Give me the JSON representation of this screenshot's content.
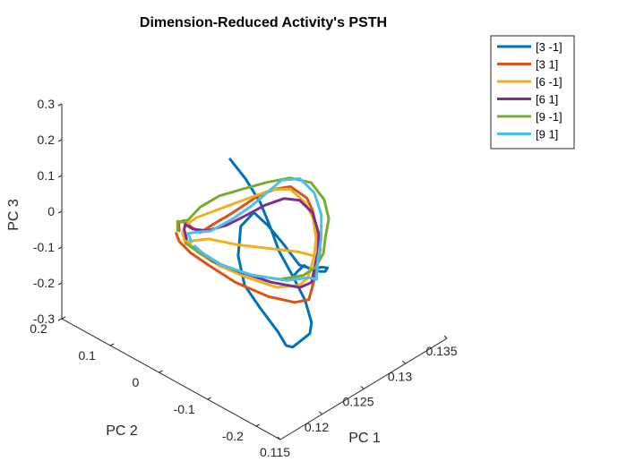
{
  "chart_data": {
    "type": "line",
    "projection": "3d",
    "title": "Dimension-Reduced Activity's PSTH",
    "xlabel": "PC 1",
    "ylabel": "PC 2",
    "zlabel": "PC 3",
    "xlim": [
      0.115,
      0.135
    ],
    "ylim": [
      -0.25,
      0.2
    ],
    "zlim": [
      -0.3,
      0.3
    ],
    "xticks": [
      0.115,
      0.12,
      0.125,
      0.13,
      0.135
    ],
    "xtick_labels": [
      "0.115",
      "0.12",
      "0.125",
      "0.13",
      "0.135"
    ],
    "yticks": [
      -0.2,
      -0.1,
      0,
      0.1,
      0.2
    ],
    "ytick_labels": [
      "-0.2",
      "-0.1",
      "0",
      "0.1",
      "0.2"
    ],
    "zticks": [
      -0.3,
      -0.2,
      -0.1,
      0,
      0.1,
      0.2,
      0.3
    ],
    "ztick_labels": [
      "-0.3",
      "-0.2",
      "-0.1",
      "0",
      "0.1",
      "0.2",
      "0.3"
    ],
    "grid": false,
    "legend_position": "top-right",
    "series": [
      {
        "name": "[3 -1]",
        "color": "#0072BD",
        "points": [
          [
            0.1215,
            -0.035,
            0.23
          ],
          [
            0.1222,
            -0.055,
            0.18
          ],
          [
            0.1228,
            -0.075,
            0.12
          ],
          [
            0.1231,
            -0.09,
            0.06
          ],
          [
            0.1233,
            -0.105,
            0.0
          ],
          [
            0.1236,
            -0.13,
            -0.06
          ],
          [
            0.1238,
            -0.15,
            -0.11
          ],
          [
            0.1237,
            -0.165,
            -0.16
          ],
          [
            0.1232,
            -0.17,
            -0.18
          ],
          [
            0.1228,
            -0.16,
            -0.2
          ],
          [
            0.1223,
            -0.15,
            -0.22
          ],
          [
            0.1221,
            -0.14,
            -0.22
          ],
          [
            0.1223,
            -0.12,
            -0.2
          ],
          [
            0.1219,
            -0.09,
            -0.15
          ],
          [
            0.1215,
            -0.065,
            -0.1
          ],
          [
            0.1216,
            -0.05,
            -0.03
          ],
          [
            0.1222,
            -0.045,
            0.04
          ],
          [
            0.1229,
            -0.06,
            0.08
          ],
          [
            0.1231,
            -0.085,
            0.06
          ],
          [
            0.1232,
            -0.115,
            0.03
          ],
          [
            0.1234,
            -0.145,
            -0.01
          ],
          [
            0.1241,
            -0.16,
            -0.02
          ],
          [
            0.1252,
            -0.16,
            -0.03
          ],
          [
            0.1262,
            -0.155,
            -0.05
          ],
          [
            0.1268,
            -0.14,
            -0.08
          ],
          [
            0.1272,
            -0.12,
            -0.1
          ],
          [
            0.1273,
            -0.1,
            -0.11
          ],
          [
            0.1266,
            -0.1,
            -0.09
          ],
          [
            0.1252,
            -0.11,
            -0.08
          ],
          [
            0.1242,
            -0.12,
            -0.07
          ]
        ]
      },
      {
        "name": "[3 1]",
        "color": "#D95319",
        "points": [
          [
            0.1186,
            0.02,
            0.03
          ],
          [
            0.1189,
            0.026,
            0.045
          ],
          [
            0.1192,
            0.02,
            0.05
          ],
          [
            0.1193,
            0.008,
            0.04
          ],
          [
            0.1196,
            -0.006,
            0.03
          ],
          [
            0.1202,
            -0.012,
            0.04
          ],
          [
            0.1212,
            -0.018,
            0.05
          ],
          [
            0.1222,
            -0.025,
            0.06
          ],
          [
            0.1235,
            -0.03,
            0.07
          ],
          [
            0.1248,
            -0.035,
            0.08
          ],
          [
            0.1262,
            -0.048,
            0.09
          ],
          [
            0.1273,
            -0.06,
            0.09
          ],
          [
            0.1278,
            -0.085,
            0.07
          ],
          [
            0.1276,
            -0.1,
            0.05
          ],
          [
            0.1272,
            -0.115,
            0.02
          ],
          [
            0.1262,
            -0.14,
            -0.01
          ],
          [
            0.125,
            -0.155,
            -0.02
          ],
          [
            0.1238,
            -0.17,
            -0.03
          ],
          [
            0.1229,
            -0.18,
            -0.04
          ],
          [
            0.1222,
            -0.185,
            -0.06
          ],
          [
            0.1215,
            -0.168,
            -0.07
          ],
          [
            0.1206,
            -0.13,
            -0.07
          ],
          [
            0.1198,
            -0.075,
            -0.06
          ],
          [
            0.1193,
            -0.03,
            -0.04
          ],
          [
            0.1188,
            0.0,
            -0.02
          ],
          [
            0.1186,
            0.02,
            0.0
          ],
          [
            0.1187,
            0.028,
            0.015
          ]
        ]
      },
      {
        "name": "[6 -1]",
        "color": "#EDB120",
        "points": [
          [
            0.1185,
            0.005,
            0.005
          ],
          [
            0.1187,
            0.015,
            0.025
          ],
          [
            0.1194,
            0.02,
            0.035
          ],
          [
            0.1204,
            0.015,
            0.045
          ],
          [
            0.1218,
            0.005,
            0.05
          ],
          [
            0.1234,
            -0.01,
            0.06
          ],
          [
            0.125,
            -0.025,
            0.07
          ],
          [
            0.1264,
            -0.04,
            0.08
          ],
          [
            0.1274,
            -0.058,
            0.08
          ],
          [
            0.1276,
            -0.085,
            0.06
          ],
          [
            0.1272,
            -0.108,
            0.04
          ],
          [
            0.1264,
            -0.128,
            0.01
          ],
          [
            0.1252,
            -0.145,
            -0.01
          ],
          [
            0.124,
            -0.158,
            -0.02
          ],
          [
            0.1232,
            -0.165,
            -0.03
          ],
          [
            0.1224,
            -0.162,
            -0.04
          ],
          [
            0.1213,
            -0.135,
            -0.05
          ],
          [
            0.1202,
            -0.09,
            -0.04
          ],
          [
            0.1193,
            -0.05,
            -0.025
          ],
          [
            0.1189,
            -0.015,
            -0.01
          ],
          [
            0.1189,
            0.008,
            0.005
          ],
          [
            0.1198,
            -0.02,
            0.02
          ],
          [
            0.1208,
            -0.06,
            0.02
          ],
          [
            0.1222,
            -0.1,
            0.02
          ],
          [
            0.1236,
            -0.14,
            0.02
          ],
          [
            0.1241,
            -0.165,
            0.02
          ]
        ]
      },
      {
        "name": "[6 1]",
        "color": "#7E2F8E",
        "points": [
          [
            0.1189,
            0.01,
            0.01
          ],
          [
            0.1192,
            0.02,
            0.025
          ],
          [
            0.1196,
            0.025,
            0.03
          ],
          [
            0.1199,
            0.015,
            0.02
          ],
          [
            0.1207,
            0.0,
            0.015
          ],
          [
            0.1222,
            -0.015,
            0.02
          ],
          [
            0.1238,
            -0.028,
            0.035
          ],
          [
            0.1254,
            -0.04,
            0.05
          ],
          [
            0.1268,
            -0.055,
            0.06
          ],
          [
            0.1277,
            -0.072,
            0.055
          ],
          [
            0.1279,
            -0.095,
            0.035
          ],
          [
            0.1272,
            -0.12,
            0.005
          ],
          [
            0.1258,
            -0.142,
            -0.01
          ],
          [
            0.1244,
            -0.158,
            -0.03
          ],
          [
            0.1234,
            -0.17,
            -0.04
          ],
          [
            0.1226,
            -0.16,
            -0.05
          ],
          [
            0.1215,
            -0.12,
            -0.05
          ],
          [
            0.1204,
            -0.075,
            -0.04
          ],
          [
            0.1194,
            -0.035,
            -0.025
          ],
          [
            0.1189,
            -0.005,
            -0.005
          ]
        ]
      },
      {
        "name": "[9 -1]",
        "color": "#77AC30",
        "points": [
          [
            0.1187,
            0.025,
            0.025
          ],
          [
            0.1191,
            0.032,
            0.04
          ],
          [
            0.1193,
            0.025,
            0.04
          ],
          [
            0.1197,
            0.02,
            0.045
          ],
          [
            0.1211,
            0.02,
            0.06
          ],
          [
            0.1228,
            0.01,
            0.075
          ],
          [
            0.1246,
            -0.01,
            0.085
          ],
          [
            0.1262,
            -0.03,
            0.095
          ],
          [
            0.1278,
            -0.05,
            0.1
          ],
          [
            0.1289,
            -0.075,
            0.09
          ],
          [
            0.129,
            -0.1,
            0.06
          ],
          [
            0.1284,
            -0.12,
            0.03
          ],
          [
            0.1274,
            -0.13,
            0.0
          ],
          [
            0.126,
            -0.15,
            -0.01
          ],
          [
            0.1245,
            -0.16,
            -0.02
          ],
          [
            0.1233,
            -0.155,
            -0.03
          ],
          [
            0.1219,
            -0.13,
            -0.04
          ],
          [
            0.1207,
            -0.09,
            -0.04
          ],
          [
            0.1197,
            -0.05,
            -0.03
          ],
          [
            0.1191,
            -0.015,
            -0.015
          ],
          [
            0.1188,
            0.01,
            0.0
          ]
        ]
      },
      {
        "name": "[9 1]",
        "color": "#4DBEEE",
        "points": [
          [
            0.1189,
            0.0,
            0.01
          ],
          [
            0.1192,
            0.012,
            0.02
          ],
          [
            0.1198,
            0.005,
            0.02
          ],
          [
            0.1207,
            -0.008,
            0.02
          ],
          [
            0.1225,
            -0.02,
            0.035
          ],
          [
            0.1243,
            -0.03,
            0.055
          ],
          [
            0.1259,
            -0.036,
            0.075
          ],
          [
            0.1273,
            -0.042,
            0.095
          ],
          [
            0.1283,
            -0.062,
            0.1
          ],
          [
            0.1284,
            -0.09,
            0.08
          ],
          [
            0.1278,
            -0.115,
            0.045
          ],
          [
            0.1266,
            -0.135,
            0.01
          ],
          [
            0.1252,
            -0.152,
            -0.02
          ],
          [
            0.124,
            -0.17,
            -0.04
          ],
          [
            0.1234,
            -0.165,
            -0.03
          ],
          [
            0.1222,
            -0.14,
            -0.04
          ],
          [
            0.1208,
            -0.095,
            -0.04
          ],
          [
            0.1197,
            -0.05,
            -0.03
          ],
          [
            0.1191,
            -0.02,
            -0.01
          ],
          [
            0.119,
            -0.005,
            0.0
          ]
        ]
      }
    ]
  }
}
